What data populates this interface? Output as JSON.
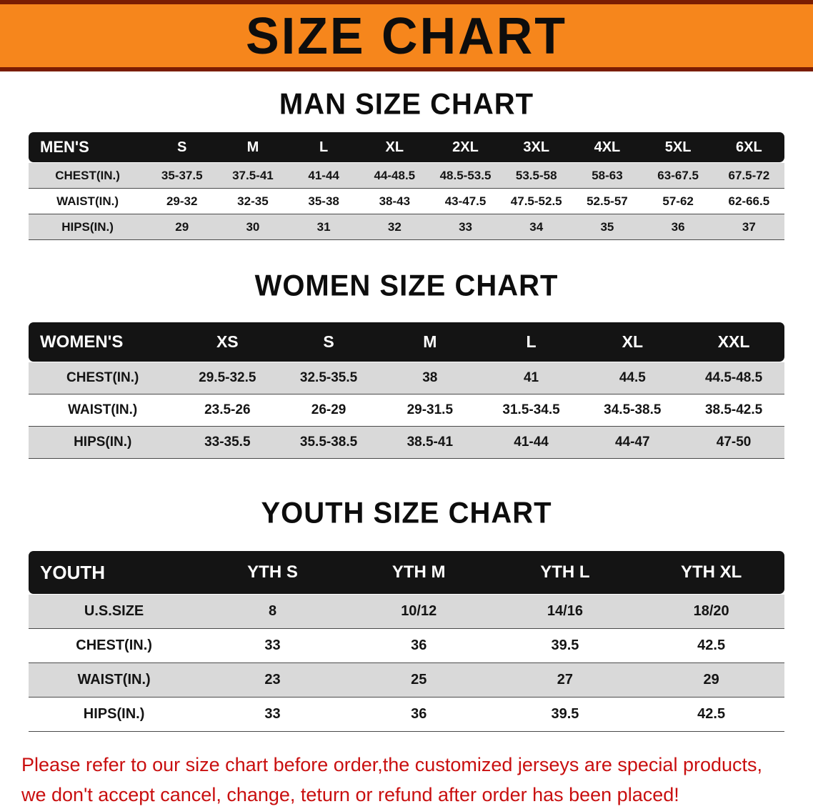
{
  "banner": {
    "title": "SIZE CHART",
    "bg_color": "#f6861c",
    "border_color": "#7a1d02"
  },
  "colors": {
    "table_header_bg": "#141414",
    "row_alt_bg": "#d9d9d9",
    "footer_text": "#c90f0f"
  },
  "sections": [
    {
      "id": "men",
      "heading": "MAN SIZE CHART",
      "table": {
        "header": [
          "MEN'S",
          "S",
          "M",
          "L",
          "XL",
          "2XL",
          "3XL",
          "4XL",
          "5XL",
          "6XL"
        ],
        "rows": [
          {
            "label": "CHEST(IN.)",
            "values": [
              "35-37.5",
              "37.5-41",
              "41-44",
              "44-48.5",
              "48.5-53.5",
              "53.5-58",
              "58-63",
              "63-67.5",
              "67.5-72"
            ]
          },
          {
            "label": "WAIST(IN.)",
            "values": [
              "29-32",
              "32-35",
              "35-38",
              "38-43",
              "43-47.5",
              "47.5-52.5",
              "52.5-57",
              "57-62",
              "62-66.5"
            ]
          },
          {
            "label": "HIPS(IN.)",
            "values": [
              "29",
              "30",
              "31",
              "32",
              "33",
              "34",
              "35",
              "36",
              "37"
            ]
          }
        ]
      }
    },
    {
      "id": "women",
      "heading": "WOMEN SIZE CHART",
      "table": {
        "header": [
          "WOMEN'S",
          "XS",
          "S",
          "M",
          "L",
          "XL",
          "XXL"
        ],
        "rows": [
          {
            "label": "CHEST(IN.)",
            "values": [
              "29.5-32.5",
              "32.5-35.5",
              "38",
              "41",
              "44.5",
              "44.5-48.5"
            ]
          },
          {
            "label": "WAIST(IN.)",
            "values": [
              "23.5-26",
              "26-29",
              "29-31.5",
              "31.5-34.5",
              "34.5-38.5",
              "38.5-42.5"
            ]
          },
          {
            "label": "HIPS(IN.)",
            "values": [
              "33-35.5",
              "35.5-38.5",
              "38.5-41",
              "41-44",
              "44-47",
              "47-50"
            ]
          }
        ]
      }
    },
    {
      "id": "youth",
      "heading": "YOUTH SIZE CHART",
      "table": {
        "header": [
          "YOUTH",
          "YTH S",
          "YTH M",
          "YTH L",
          "YTH XL"
        ],
        "rows": [
          {
            "label": "U.S.SIZE",
            "values": [
              "8",
              "10/12",
              "14/16",
              "18/20"
            ]
          },
          {
            "label": "CHEST(IN.)",
            "values": [
              "33",
              "36",
              "39.5",
              "42.5"
            ]
          },
          {
            "label": "WAIST(IN.)",
            "values": [
              "23",
              "25",
              "27",
              "29"
            ]
          },
          {
            "label": "HIPS(IN.)",
            "values": [
              "33",
              "36",
              "39.5",
              "42.5"
            ]
          }
        ]
      }
    }
  ],
  "footer": {
    "lines": [
      "Please refer to our size chart before order,the customized jerseys are special products,",
      "we don't accept cancel, change, teturn or refund after order has been placed!"
    ]
  }
}
